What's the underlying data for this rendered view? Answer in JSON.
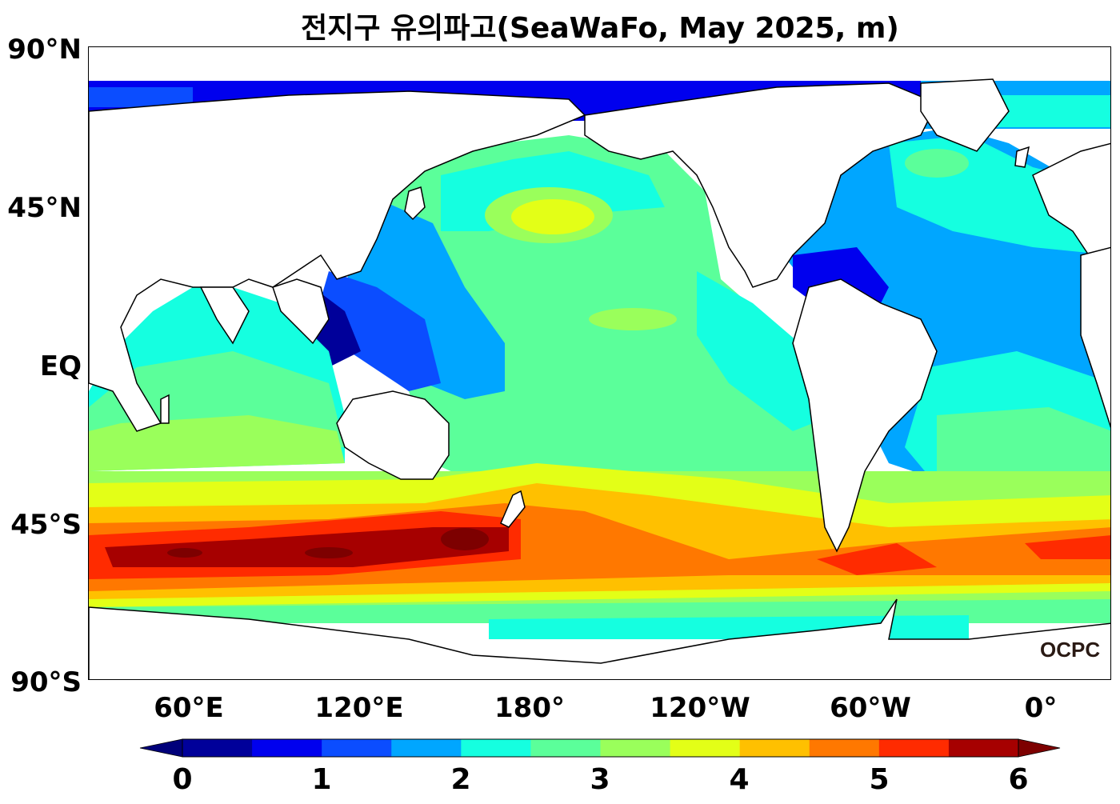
{
  "title": "전지구 유의파고(SeaWaFo, May 2025, m)",
  "lat_labels": [
    "90°N",
    "45°N",
    "EQ",
    "45°S",
    "90°S"
  ],
  "lon_labels": [
    "60°E",
    "120°E",
    "180°",
    "120°W",
    "60°W",
    "0°"
  ],
  "logo": "OCPC",
  "colorbar": {
    "ticks": [
      "0",
      "1",
      "2",
      "3",
      "4",
      "5",
      "6"
    ],
    "colors": [
      "#00009a",
      "#0000ee",
      "#0b4dff",
      "#00a6ff",
      "#15ffe0",
      "#5bff9a",
      "#9aff5b",
      "#e3ff17",
      "#ffc000",
      "#ff7800",
      "#ff2b00",
      "#a60000"
    ],
    "under_color": "#00007a",
    "over_color": "#7d0000"
  },
  "chart_data": {
    "type": "heatmap",
    "title": "전지구 유의파고(SeaWaFo, May 2025, m)",
    "variable": "significant wave height",
    "unit": "m",
    "projection": "equirectangular, Pacific-centered",
    "lon_range": [
      25,
      375
    ],
    "lat_range": [
      -90,
      90
    ],
    "colorbar_range": [
      0,
      6
    ],
    "colorbar_levels": [
      0,
      0.5,
      1,
      1.5,
      2,
      2.5,
      3,
      3.5,
      4,
      4.5,
      5,
      5.5,
      6
    ],
    "regions": [
      {
        "region": "Arctic / marginal seas",
        "value": 0.5
      },
      {
        "region": "Western Pacific warm pool",
        "value": 1.5
      },
      {
        "region": "Tropical Atlantic",
        "value": 1.8
      },
      {
        "region": "Tropical/central Pacific",
        "value": 2.8
      },
      {
        "region": "North Pacific (~45°N)",
        "value": 3.8
      },
      {
        "region": "Southern Ocean Indian sector (~50°S)",
        "value": 6.0
      },
      {
        "region": "Southern Ocean Pacific sector (~50°S)",
        "value": 5.0
      },
      {
        "region": "Southern Ocean Atlantic sector (~50°S)",
        "value": 5.2
      }
    ]
  }
}
